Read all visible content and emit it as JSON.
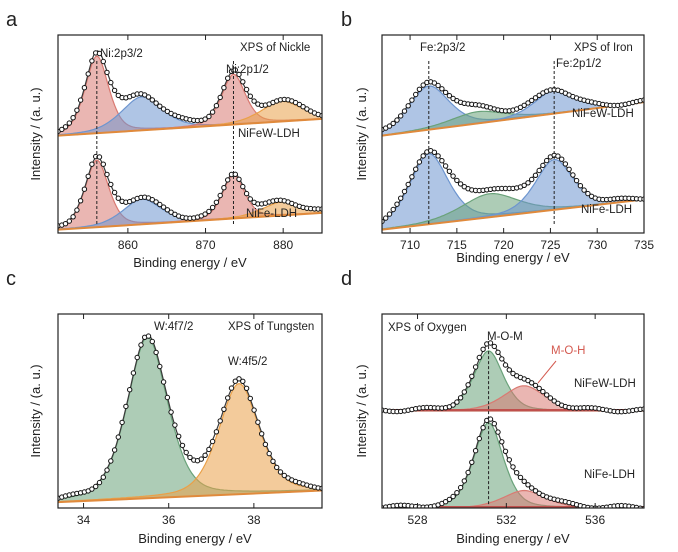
{
  "chart_data": [
    {
      "panel": "a",
      "type": "line",
      "title": "XPS of Nickle",
      "xlabel": "Binding energy / eV",
      "ylabel": "Intensity / (a. u.)",
      "xlim": [
        851,
        885
      ],
      "xticks": [
        860,
        870,
        880
      ],
      "peak_lines": [
        {
          "label": "Ni:2p3/2",
          "x": 856.0
        },
        {
          "label": "Ni:2p1/2",
          "x": 873.6
        }
      ],
      "series": [
        {
          "name": "NiFeW-LDH",
          "offset": 0.56,
          "background": [
            0.02,
            0.12
          ],
          "components": [
            {
              "color": "#d97a72",
              "center": 856.0,
              "height": 0.46,
              "width": 1.6
            },
            {
              "color": "#6d95cf",
              "center": 861.8,
              "height": 0.2,
              "width": 2.8
            },
            {
              "color": "#d97a72",
              "center": 873.6,
              "height": 0.3,
              "width": 1.6
            },
            {
              "color": "#eaa048",
              "center": 879.8,
              "height": 0.12,
              "width": 2.8
            }
          ]
        },
        {
          "name": "NiFe-LDH",
          "offset": 0.0,
          "background": [
            0.02,
            0.12
          ],
          "components": [
            {
              "color": "#d97a72",
              "center": 856.0,
              "height": 0.4,
              "width": 1.6
            },
            {
              "color": "#6d95cf",
              "center": 861.8,
              "height": 0.15,
              "width": 2.6
            },
            {
              "color": "#d97a72",
              "center": 873.6,
              "height": 0.26,
              "width": 1.5
            },
            {
              "color": "#eaa048",
              "center": 879.8,
              "height": 0.08,
              "width": 2.6
            }
          ]
        }
      ]
    },
    {
      "panel": "b",
      "type": "line",
      "title": "XPS of Iron",
      "xlabel": "Binding energy / eV",
      "ylabel": "Intensity / (a. u.)",
      "xlim": [
        707,
        735
      ],
      "xticks": [
        710,
        715,
        720,
        725,
        730,
        735
      ],
      "peak_lines": [
        {
          "label": "Fe:2p3/2",
          "x": 712.0
        },
        {
          "label": "Fe:2p1/2",
          "x": 725.4
        }
      ],
      "series": [
        {
          "name": "NiFeW-LDH",
          "offset": 0.56,
          "background": [
            0.02,
            0.22
          ],
          "components": [
            {
              "color": "#6d95cf",
              "center": 712.0,
              "height": 0.26,
              "width": 2.3
            },
            {
              "color": "#6aa27a",
              "center": 717.2,
              "height": 0.07,
              "width": 3.0
            },
            {
              "color": "#6d95cf",
              "center": 725.4,
              "height": 0.14,
              "width": 2.2
            }
          ]
        },
        {
          "name": "NiFe-LDH",
          "offset": 0.0,
          "background": [
            0.02,
            0.2
          ],
          "components": [
            {
              "color": "#6d95cf",
              "center": 712.0,
              "height": 0.42,
              "width": 2.2
            },
            {
              "color": "#6aa27a",
              "center": 718.5,
              "height": 0.14,
              "width": 3.2
            },
            {
              "color": "#6d95cf",
              "center": 725.4,
              "height": 0.3,
              "width": 2.1
            }
          ]
        }
      ]
    },
    {
      "panel": "c",
      "type": "line",
      "title": "XPS of Tungsten",
      "xlabel": "Binding energy / eV",
      "ylabel": "Intensity / (a. u.)",
      "xlim": [
        33.4,
        39.6
      ],
      "xticks": [
        34,
        36,
        38
      ],
      "peak_labels": [
        {
          "label": "W:4f7/2",
          "x": 35.5
        },
        {
          "label": "W:4f5/2",
          "x": 37.65
        }
      ],
      "series": [
        {
          "name": "",
          "offset": 0.0,
          "background": [
            0.03,
            0.09
          ],
          "components": [
            {
              "color": "#6aa27a",
              "center": 35.5,
              "height": 0.83,
              "width": 0.5
            },
            {
              "color": "#eaa048",
              "center": 37.65,
              "height": 0.57,
              "width": 0.5
            }
          ]
        }
      ]
    },
    {
      "panel": "d",
      "type": "line",
      "title": "XPS of Oxygen",
      "xlabel": "Binding energy / eV",
      "ylabel": "Intensity / (a. u.)",
      "xlim": [
        526.4,
        538.2
      ],
      "xticks": [
        528,
        532,
        536
      ],
      "peak_lines": [
        {
          "label": "M-O-M",
          "x": 531.2
        }
      ],
      "peak_labels": [
        {
          "label": "M-O-H",
          "x": 532.9
        }
      ],
      "series": [
        {
          "name": "NiFeW-LDH",
          "offset": 0.5,
          "background": [
            0.0,
            0.0
          ],
          "components": [
            {
              "color": "#6aa27a",
              "center": 531.2,
              "height": 0.31,
              "width": 0.7
            },
            {
              "color": "#d97a72",
              "center": 532.8,
              "height": 0.13,
              "width": 1.0
            }
          ]
        },
        {
          "name": "NiFe-LDH",
          "offset": 0.0,
          "background": [
            0.0,
            0.0
          ],
          "components": [
            {
              "color": "#6aa27a",
              "center": 531.2,
              "height": 0.44,
              "width": 0.7
            },
            {
              "color": "#d97a72",
              "center": 532.8,
              "height": 0.09,
              "width": 1.0
            }
          ]
        }
      ]
    }
  ]
}
